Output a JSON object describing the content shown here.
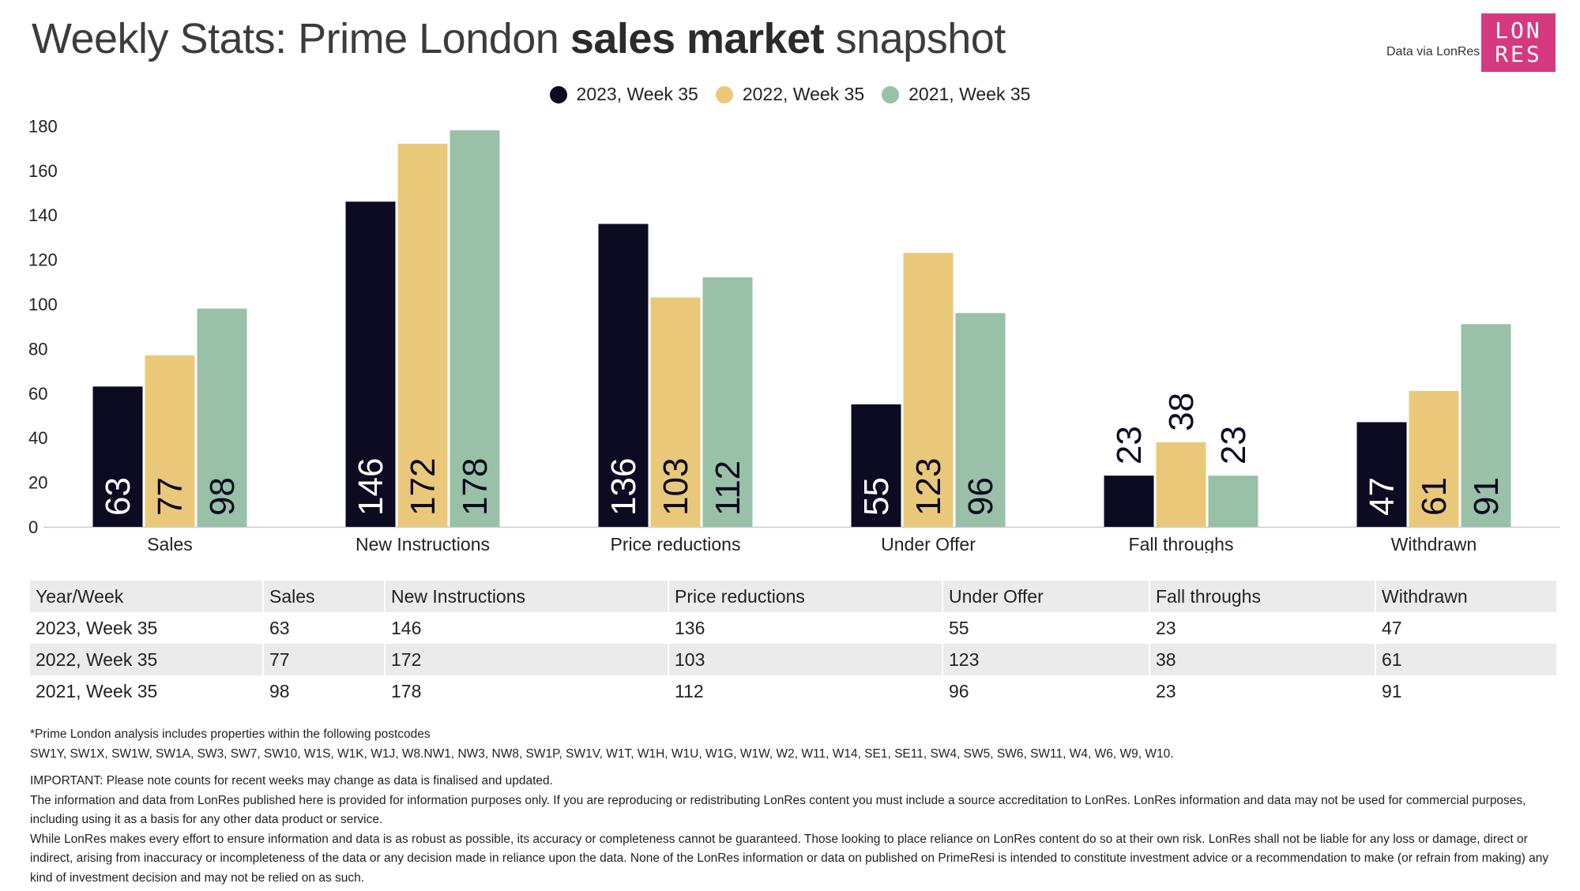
{
  "header": {
    "title_part1": "Weekly Stats: Prime London ",
    "title_bold": "sales market",
    "title_part2": " snapshot",
    "credit": "Data via LonRes",
    "logo_line1": "LON",
    "logo_line2": "RES"
  },
  "colors": {
    "series": [
      "#0d0b22",
      "#e9c979",
      "#98c1a7"
    ],
    "axis": "#cccccc",
    "text": "#222222"
  },
  "chart_data": {
    "type": "bar",
    "title": "Weekly Stats: Prime London sales market snapshot",
    "categories": [
      "Sales",
      "New Instructions",
      "Price reductions",
      "Under Offer",
      "Fall throughs",
      "Withdrawn"
    ],
    "series": [
      {
        "name": "2023, Week 35",
        "values": [
          63,
          146,
          136,
          55,
          23,
          47
        ]
      },
      {
        "name": "2022, Week 35",
        "values": [
          77,
          172,
          103,
          123,
          38,
          61
        ]
      },
      {
        "name": "2021, Week 35",
        "values": [
          98,
          178,
          112,
          96,
          23,
          91
        ]
      }
    ],
    "ylim": [
      0,
      180
    ],
    "yticks": [
      0,
      20,
      40,
      60,
      80,
      100,
      120,
      140,
      160,
      180
    ],
    "xlabel": "",
    "ylabel": "",
    "grid": false,
    "legend_position": "top-center",
    "data_labels": "rotated vertical"
  },
  "table": {
    "headers": [
      "Year/Week",
      "Sales",
      "New Instructions",
      "Price reductions",
      "Under Offer",
      "Fall throughs",
      "Withdrawn"
    ],
    "rows": [
      [
        "2023, Week 35",
        "63",
        "146",
        "136",
        "55",
        "23",
        "47"
      ],
      [
        "2022, Week 35",
        "77",
        "172",
        "103",
        "123",
        "38",
        "61"
      ],
      [
        "2021, Week 35",
        "98",
        "178",
        "112",
        "96",
        "23",
        "91"
      ]
    ]
  },
  "notes": {
    "postcodes_intro": "*Prime London analysis includes properties within the following postcodes",
    "postcodes": "SW1Y, SW1X, SW1W, SW1A, SW3, SW7, SW10, W1S, W1K, W1J, W8.NW1, NW3, NW8, SW1P, SW1V, W1T, W1H, W1U, W1G, W1W, W2, W11, W14, SE1, SE11, SW4, SW5, SW6, SW11, W4, W6, W9, W10.",
    "important": "IMPORTANT: Please note counts for recent weeks may change as data is finalised and updated.",
    "usage": "The information and data from LonRes published here is provided for information purposes only. If you are reproducing or redistributing LonRes content you must include a source accreditation to LonRes. LonRes information and data may not be used for commercial purposes, including using it as a basis for any other data product or service.",
    "disclaimer": "While LonRes makes every effort to ensure information and data is as robust as possible, its accuracy or completeness cannot be guaranteed. Those looking to place reliance on LonRes content do so at their own risk. LonRes shall not be liable for any loss or damage, direct or indirect, arising from inaccuracy or incompleteness of the data or any decision made in reliance upon the data. None of the LonRes information or data on published on PrimeResi is intended to constitute investment advice or a recommendation to make (or refrain from making) any kind of investment decision and may not be relied on as such."
  }
}
